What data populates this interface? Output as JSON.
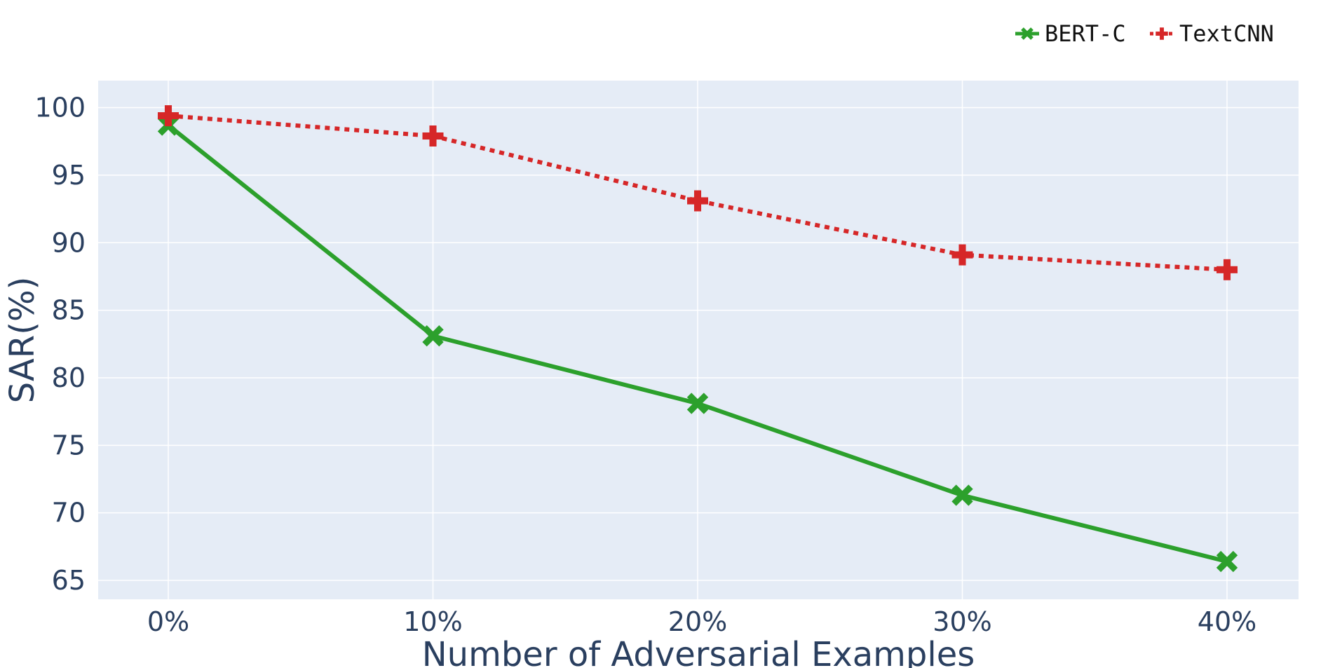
{
  "chart_data": {
    "type": "line",
    "categories": [
      "0%",
      "10%",
      "20%",
      "30%",
      "40%"
    ],
    "series": [
      {
        "name": "BERT-C",
        "values": [
          98.7,
          83.1,
          78.1,
          71.3,
          66.4
        ],
        "color": "#2ca02c",
        "line": "solid",
        "marker": "x"
      },
      {
        "name": "TextCNN",
        "values": [
          99.4,
          97.9,
          93.1,
          89.1,
          88.0
        ],
        "color": "#d62728",
        "line": "dotted",
        "marker": "cross"
      }
    ],
    "xlabel": "Number of Adversarial Examples",
    "ylabel": "SAR(%)",
    "ylim": [
      63.6,
      102.0
    ],
    "yticks": [
      65,
      70,
      75,
      80,
      85,
      90,
      95,
      100
    ],
    "grid": true,
    "legend_position": "top-right",
    "plot_background": "#e5ecf6"
  }
}
